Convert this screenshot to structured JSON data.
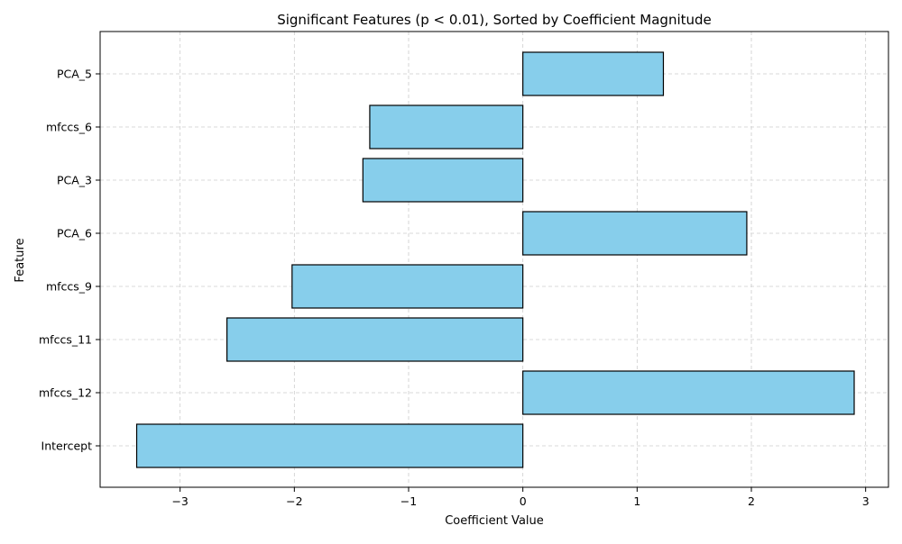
{
  "chart_data": {
    "type": "bar",
    "orientation": "horizontal",
    "title": "Significant Features (p < 0.01), Sorted by Coefficient Magnitude",
    "xlabel": "Coefficient Value",
    "ylabel": "Feature",
    "categories": [
      "Intercept",
      "mfccs_12",
      "mfccs_11",
      "mfccs_9",
      "PCA_6",
      "PCA_3",
      "mfccs_6",
      "PCA_5"
    ],
    "values": [
      -3.38,
      2.9,
      -2.59,
      -2.02,
      1.96,
      -1.4,
      -1.34,
      1.23
    ],
    "xlim": [
      -3.7,
      3.2
    ],
    "xticks": [
      -3,
      -2,
      -1,
      0,
      1,
      2,
      3
    ],
    "xtick_labels": [
      "−3",
      "−2",
      "−1",
      "0",
      "1",
      "2",
      "3"
    ],
    "grid": true,
    "bar_color": "#87CEEB",
    "bar_edge_color": "#000000"
  }
}
